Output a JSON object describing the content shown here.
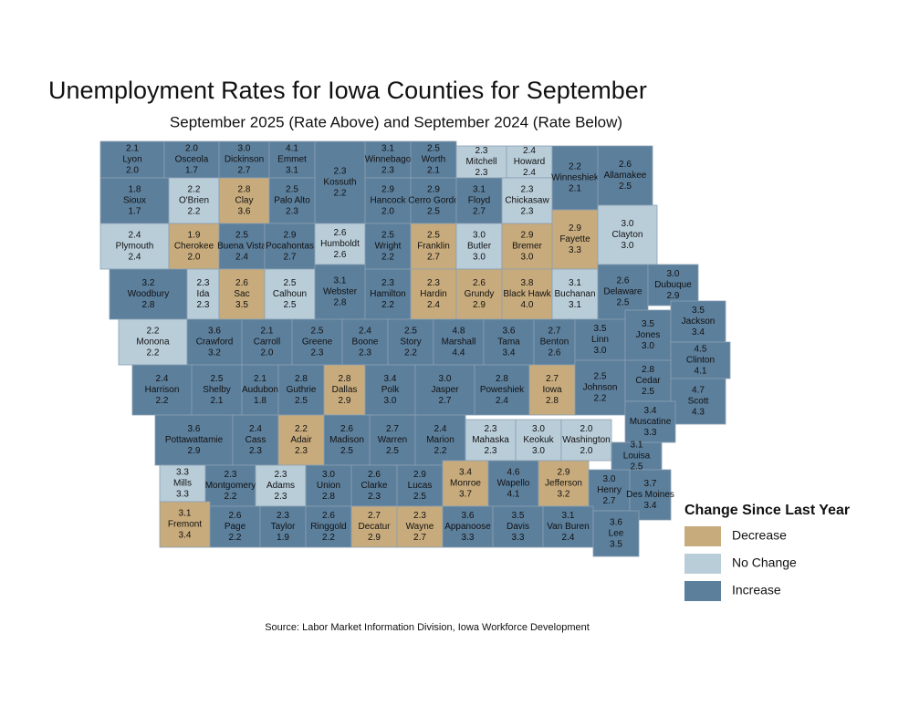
{
  "title": "Unemployment Rates for Iowa Counties for September",
  "subtitle": "September 2025 (Rate Above) and September 2024 (Rate Below)",
  "legend": {
    "title": "Change Since Last Year",
    "items": [
      {
        "label": "Decrease",
        "color": "#c8ab7c"
      },
      {
        "label": "No Change",
        "color": "#b9cdd9"
      },
      {
        "label": "Increase",
        "color": "#5c7f9c"
      }
    ]
  },
  "source": "Source: Labor Market Information Division, Iowa Workforce Development",
  "counties": [
    {
      "county": "Lyon",
      "rate_2025": "2.1",
      "rate_2024": "2.0"
    },
    {
      "county": "Osceola",
      "rate_2025": "2.0",
      "rate_2024": "1.7"
    },
    {
      "county": "Dickinson",
      "rate_2025": "3.0",
      "rate_2024": "2.7"
    },
    {
      "county": "Emmet",
      "rate_2025": "4.1",
      "rate_2024": "3.1"
    },
    {
      "county": "Kossuth",
      "rate_2025": "2.3",
      "rate_2024": "2.2"
    },
    {
      "county": "Winnebago",
      "rate_2025": "3.1",
      "rate_2024": "2.3"
    },
    {
      "county": "Worth",
      "rate_2025": "2.5",
      "rate_2024": "2.1"
    },
    {
      "county": "Mitchell",
      "rate_2025": "2.3",
      "rate_2024": "2.3"
    },
    {
      "county": "Howard",
      "rate_2025": "2.4",
      "rate_2024": "2.4"
    },
    {
      "county": "Winneshiek",
      "rate_2025": "2.2",
      "rate_2024": "2.1"
    },
    {
      "county": "Allamakee",
      "rate_2025": "2.6",
      "rate_2024": "2.5"
    },
    {
      "county": "Sioux",
      "rate_2025": "1.8",
      "rate_2024": "1.7"
    },
    {
      "county": "O'Brien",
      "rate_2025": "2.2",
      "rate_2024": "2.2"
    },
    {
      "county": "Clay",
      "rate_2025": "2.8",
      "rate_2024": "3.6"
    },
    {
      "county": "Palo Alto",
      "rate_2025": "2.5",
      "rate_2024": "2.3"
    },
    {
      "county": "Hancock",
      "rate_2025": "2.9",
      "rate_2024": "2.0"
    },
    {
      "county": "Cerro Gordo",
      "rate_2025": "2.9",
      "rate_2024": "2.5"
    },
    {
      "county": "Floyd",
      "rate_2025": "3.1",
      "rate_2024": "2.7"
    },
    {
      "county": "Chickasaw",
      "rate_2025": "2.3",
      "rate_2024": "2.3"
    },
    {
      "county": "Plymouth",
      "rate_2025": "2.4",
      "rate_2024": "2.4"
    },
    {
      "county": "Cherokee",
      "rate_2025": "1.9",
      "rate_2024": "2.0"
    },
    {
      "county": "Buena Vista",
      "rate_2025": "2.5",
      "rate_2024": "2.4"
    },
    {
      "county": "Pocahontas",
      "rate_2025": "2.9",
      "rate_2024": "2.7"
    },
    {
      "county": "Humboldt",
      "rate_2025": "2.6",
      "rate_2024": "2.6"
    },
    {
      "county": "Wright",
      "rate_2025": "2.5",
      "rate_2024": "2.2"
    },
    {
      "county": "Franklin",
      "rate_2025": "2.5",
      "rate_2024": "2.7"
    },
    {
      "county": "Butler",
      "rate_2025": "3.0",
      "rate_2024": "3.0"
    },
    {
      "county": "Bremer",
      "rate_2025": "2.9",
      "rate_2024": "3.0"
    },
    {
      "county": "Fayette",
      "rate_2025": "2.9",
      "rate_2024": "3.3"
    },
    {
      "county": "Clayton",
      "rate_2025": "3.0",
      "rate_2024": "3.0"
    },
    {
      "county": "Woodbury",
      "rate_2025": "3.2",
      "rate_2024": "2.8"
    },
    {
      "county": "Ida",
      "rate_2025": "2.3",
      "rate_2024": "2.3"
    },
    {
      "county": "Sac",
      "rate_2025": "2.6",
      "rate_2024": "3.5"
    },
    {
      "county": "Calhoun",
      "rate_2025": "2.5",
      "rate_2024": "2.5"
    },
    {
      "county": "Webster",
      "rate_2025": "3.1",
      "rate_2024": "2.8"
    },
    {
      "county": "Hamilton",
      "rate_2025": "2.3",
      "rate_2024": "2.2"
    },
    {
      "county": "Hardin",
      "rate_2025": "2.3",
      "rate_2024": "2.4"
    },
    {
      "county": "Grundy",
      "rate_2025": "2.6",
      "rate_2024": "2.9"
    },
    {
      "county": "Black Hawk",
      "rate_2025": "3.8",
      "rate_2024": "4.0"
    },
    {
      "county": "Buchanan",
      "rate_2025": "3.1",
      "rate_2024": "3.1"
    },
    {
      "county": "Delaware",
      "rate_2025": "2.6",
      "rate_2024": "2.5"
    },
    {
      "county": "Dubuque",
      "rate_2025": "3.0",
      "rate_2024": "2.9"
    },
    {
      "county": "Monona",
      "rate_2025": "2.2",
      "rate_2024": "2.2"
    },
    {
      "county": "Crawford",
      "rate_2025": "3.6",
      "rate_2024": "3.2"
    },
    {
      "county": "Carroll",
      "rate_2025": "2.1",
      "rate_2024": "2.0"
    },
    {
      "county": "Greene",
      "rate_2025": "2.5",
      "rate_2024": "2.3"
    },
    {
      "county": "Boone",
      "rate_2025": "2.4",
      "rate_2024": "2.3"
    },
    {
      "county": "Story",
      "rate_2025": "2.5",
      "rate_2024": "2.2"
    },
    {
      "county": "Marshall",
      "rate_2025": "4.8",
      "rate_2024": "4.4"
    },
    {
      "county": "Tama",
      "rate_2025": "3.6",
      "rate_2024": "3.4"
    },
    {
      "county": "Benton",
      "rate_2025": "2.7",
      "rate_2024": "2.6"
    },
    {
      "county": "Linn",
      "rate_2025": "3.5",
      "rate_2024": "3.0"
    },
    {
      "county": "Jones",
      "rate_2025": "3.5",
      "rate_2024": "3.0"
    },
    {
      "county": "Jackson",
      "rate_2025": "3.5",
      "rate_2024": "3.4"
    },
    {
      "county": "Clinton",
      "rate_2025": "4.5",
      "rate_2024": "4.1"
    },
    {
      "county": "Harrison",
      "rate_2025": "2.4",
      "rate_2024": "2.2"
    },
    {
      "county": "Shelby",
      "rate_2025": "2.5",
      "rate_2024": "2.1"
    },
    {
      "county": "Audubon",
      "rate_2025": "2.1",
      "rate_2024": "1.8"
    },
    {
      "county": "Guthrie",
      "rate_2025": "2.8",
      "rate_2024": "2.5"
    },
    {
      "county": "Dallas",
      "rate_2025": "2.8",
      "rate_2024": "2.9"
    },
    {
      "county": "Polk",
      "rate_2025": "3.4",
      "rate_2024": "3.0"
    },
    {
      "county": "Jasper",
      "rate_2025": "3.0",
      "rate_2024": "2.7"
    },
    {
      "county": "Poweshiek",
      "rate_2025": "2.8",
      "rate_2024": "2.4"
    },
    {
      "county": "Iowa",
      "rate_2025": "2.7",
      "rate_2024": "2.8"
    },
    {
      "county": "Johnson",
      "rate_2025": "2.5",
      "rate_2024": "2.2"
    },
    {
      "county": "Cedar",
      "rate_2025": "2.8",
      "rate_2024": "2.5"
    },
    {
      "county": "Scott",
      "rate_2025": "4.7",
      "rate_2024": "4.3"
    },
    {
      "county": "Muscatine",
      "rate_2025": "3.4",
      "rate_2024": "3.3"
    },
    {
      "county": "Pottawattamie",
      "rate_2025": "3.6",
      "rate_2024": "2.9"
    },
    {
      "county": "Cass",
      "rate_2025": "2.4",
      "rate_2024": "2.3"
    },
    {
      "county": "Adair",
      "rate_2025": "2.2",
      "rate_2024": "2.3"
    },
    {
      "county": "Madison",
      "rate_2025": "2.6",
      "rate_2024": "2.5"
    },
    {
      "county": "Warren",
      "rate_2025": "2.7",
      "rate_2024": "2.5"
    },
    {
      "county": "Marion",
      "rate_2025": "2.4",
      "rate_2024": "2.2"
    },
    {
      "county": "Mahaska",
      "rate_2025": "2.3",
      "rate_2024": "2.3"
    },
    {
      "county": "Keokuk",
      "rate_2025": "3.0",
      "rate_2024": "3.0"
    },
    {
      "county": "Washington",
      "rate_2025": "2.0",
      "rate_2024": "2.0"
    },
    {
      "county": "Louisa",
      "rate_2025": "3.1",
      "rate_2024": "2.5"
    },
    {
      "county": "Mills",
      "rate_2025": "3.3",
      "rate_2024": "3.3"
    },
    {
      "county": "Montgomery",
      "rate_2025": "2.3",
      "rate_2024": "2.2"
    },
    {
      "county": "Adams",
      "rate_2025": "2.3",
      "rate_2024": "2.3"
    },
    {
      "county": "Union",
      "rate_2025": "3.0",
      "rate_2024": "2.8"
    },
    {
      "county": "Clarke",
      "rate_2025": "2.6",
      "rate_2024": "2.3"
    },
    {
      "county": "Lucas",
      "rate_2025": "2.9",
      "rate_2024": "2.5"
    },
    {
      "county": "Monroe",
      "rate_2025": "3.4",
      "rate_2024": "3.7"
    },
    {
      "county": "Wapello",
      "rate_2025": "4.6",
      "rate_2024": "4.1"
    },
    {
      "county": "Jefferson",
      "rate_2025": "2.9",
      "rate_2024": "3.2"
    },
    {
      "county": "Henry",
      "rate_2025": "3.0",
      "rate_2024": "2.7"
    },
    {
      "county": "Des Moines",
      "rate_2025": "3.7",
      "rate_2024": "3.4"
    },
    {
      "county": "Fremont",
      "rate_2025": "3.1",
      "rate_2024": "3.4"
    },
    {
      "county": "Page",
      "rate_2025": "2.6",
      "rate_2024": "2.2"
    },
    {
      "county": "Taylor",
      "rate_2025": "2.3",
      "rate_2024": "1.9"
    },
    {
      "county": "Ringgold",
      "rate_2025": "2.6",
      "rate_2024": "2.2"
    },
    {
      "county": "Decatur",
      "rate_2025": "2.7",
      "rate_2024": "2.9"
    },
    {
      "county": "Wayne",
      "rate_2025": "2.3",
      "rate_2024": "2.7"
    },
    {
      "county": "Appanoose",
      "rate_2025": "3.6",
      "rate_2024": "3.3"
    },
    {
      "county": "Davis",
      "rate_2025": "3.5",
      "rate_2024": "3.3"
    },
    {
      "county": "Van Buren",
      "rate_2025": "3.1",
      "rate_2024": "2.4"
    },
    {
      "county": "Lee",
      "rate_2025": "3.6",
      "rate_2024": "3.5"
    }
  ]
}
